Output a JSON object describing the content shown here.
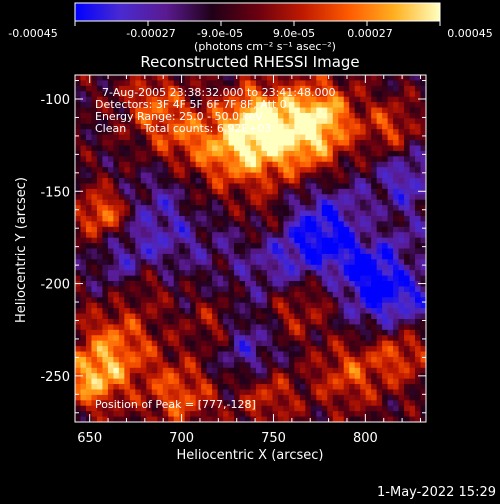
{
  "colorbar": {
    "ticks": [
      "-0.00045",
      "-0.00027",
      "-9.0e-05",
      "9.0e-05",
      "0.00027",
      "0.00045"
    ],
    "units_label": "(photons cm⁻² s⁻¹ asec⁻²)",
    "colors": [
      "#0000ff",
      "#4a2ad0",
      "#5a1a90",
      "#200018",
      "#6a0010",
      "#c01a00",
      "#ff5a00",
      "#ffb020",
      "#ffffc0"
    ]
  },
  "chart_data": {
    "type": "heatmap",
    "title": "Reconstructed RHESSI Image",
    "xlabel": "Heliocentric X (arcsec)",
    "ylabel": "Heliocentric Y (arcsec)",
    "xlim": [
      642,
      833
    ],
    "ylim": [
      -275,
      -87
    ],
    "xticks": [
      "650",
      "700",
      "750",
      "800"
    ],
    "yticks": [
      "-100",
      "-150",
      "-200",
      "-250"
    ],
    "zlim": [
      -0.00045,
      0.00045
    ],
    "annotations": [
      "7-Aug-2005 23:38:32.000 to 23:41:48.000",
      "Detectors: 3F 4F 5F 6F 7F 8F, Att 0",
      "Energy Range: 25.0 - 50.0 keV",
      "Clean     Total counts: 6.92E+03"
    ],
    "peak_label": "Position of Peak = [777,-128]",
    "peak": [
      777,
      -128
    ]
  },
  "footer": {
    "timestamp": "1-May-2022 15:29"
  }
}
